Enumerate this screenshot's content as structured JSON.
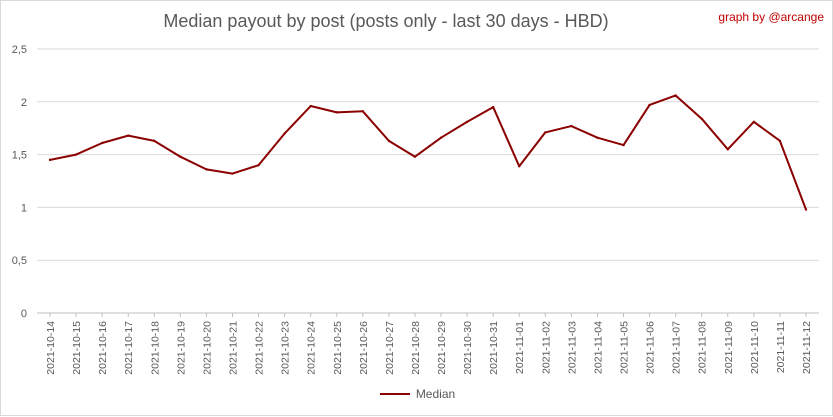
{
  "chart_data": {
    "type": "line",
    "title": "Median payout by post (posts only - last 30 days - HBD)",
    "credit": "graph by @arcange",
    "xlabel": "",
    "ylabel": "",
    "ylim": [
      0,
      2.5
    ],
    "y_ticks": [
      "0",
      "0,5",
      "1",
      "1,5",
      "2",
      "2,5"
    ],
    "y_tick_values": [
      0,
      0.5,
      1,
      1.5,
      2,
      2.5
    ],
    "grid": true,
    "legend_position": "bottom",
    "categories": [
      "2021-10-14",
      "2021-10-15",
      "2021-10-16",
      "2021-10-17",
      "2021-10-18",
      "2021-10-19",
      "2021-10-20",
      "2021-10-21",
      "2021-10-22",
      "2021-10-23",
      "2021-10-24",
      "2021-10-25",
      "2021-10-26",
      "2021-10-27",
      "2021-10-28",
      "2021-10-29",
      "2021-10-30",
      "2021-10-31",
      "2021-11-01",
      "2021-11-02",
      "2021-11-03",
      "2021-11-04",
      "2021-11-05",
      "2021-11-06",
      "2021-11-07",
      "2021-11-08",
      "2021-11-09",
      "2021-11-10",
      "2021-11-11",
      "2021-11-12"
    ],
    "series": [
      {
        "name": "Median",
        "color": "#8b0000",
        "values": [
          1.45,
          1.5,
          1.61,
          1.68,
          1.63,
          1.48,
          1.36,
          1.32,
          1.4,
          1.7,
          1.96,
          1.9,
          1.91,
          1.63,
          1.48,
          1.66,
          1.81,
          1.95,
          1.39,
          1.71,
          1.77,
          1.66,
          1.59,
          1.97,
          2.06,
          1.84,
          1.55,
          1.81,
          1.63,
          0.98
        ]
      }
    ]
  }
}
